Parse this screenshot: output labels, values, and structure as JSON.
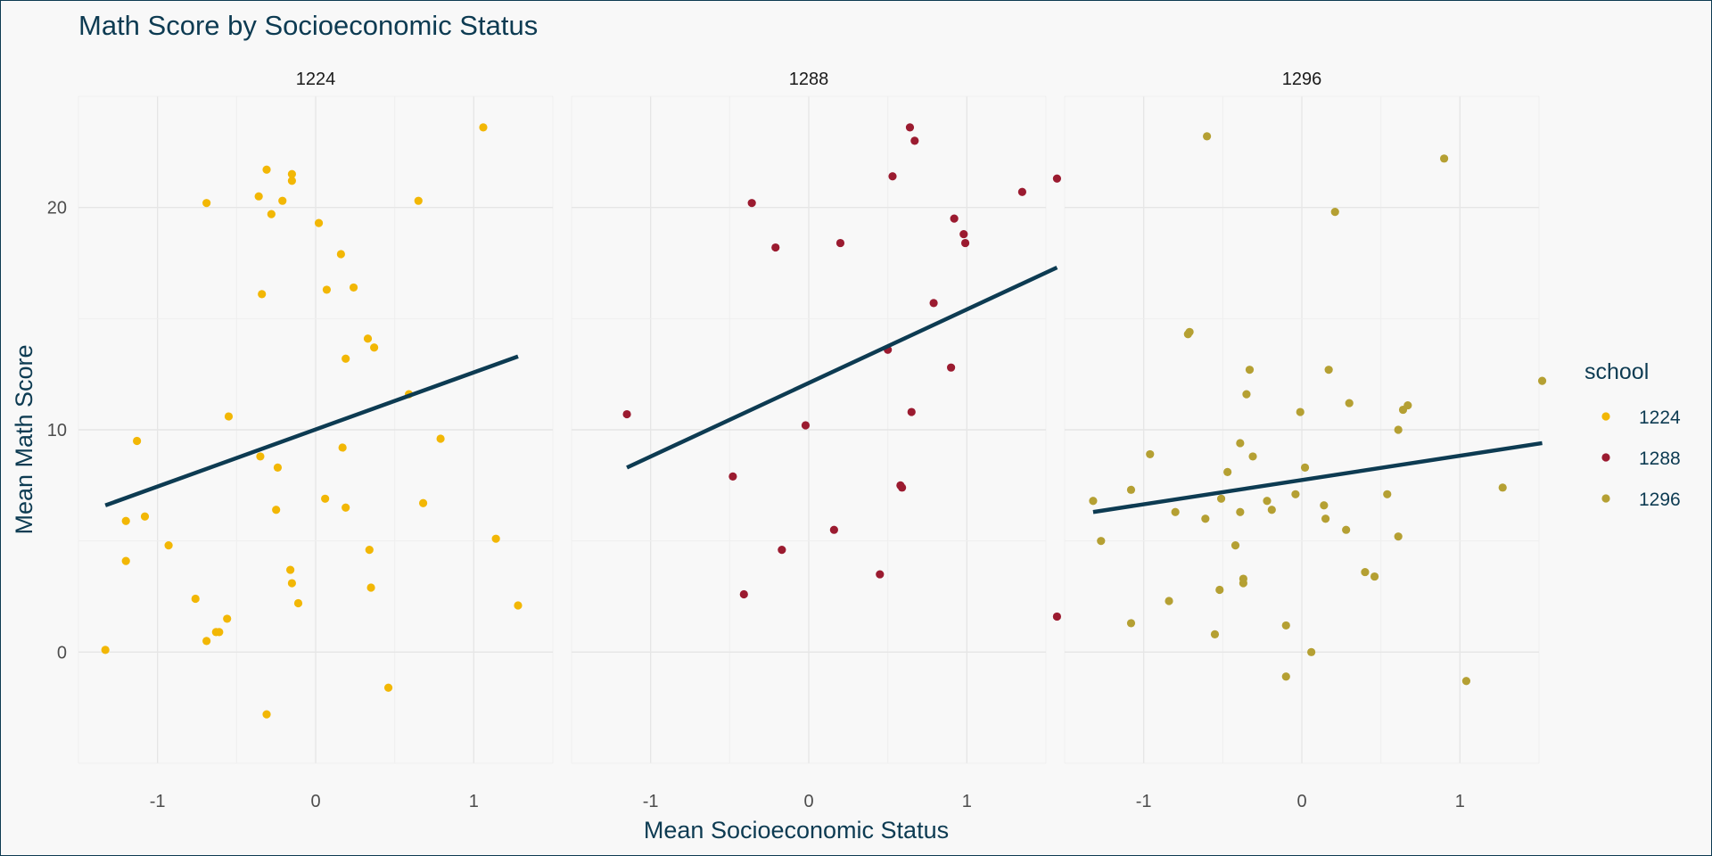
{
  "chart_data": {
    "type": "scatter",
    "title": "Math Score by Socioeconomic Status",
    "xlabel": "Mean Socioeconomic Status",
    "ylabel": "Mean Math Score",
    "xlim": [
      -1.5,
      1.5
    ],
    "ylim": [
      -5,
      25
    ],
    "x_ticks": [
      -1,
      0,
      1
    ],
    "y_ticks": [
      0,
      10,
      20
    ],
    "x_tick_labels": [
      "-1",
      "0",
      "1"
    ],
    "y_tick_labels": [
      "0",
      "10",
      "20"
    ],
    "grid": true,
    "legend": {
      "title": "school",
      "position": "right"
    },
    "facets": [
      {
        "label": "1224",
        "color": "#f2b705",
        "fit": {
          "x": [
            -1.33,
            1.28
          ],
          "y": [
            6.6,
            13.3
          ]
        },
        "points": [
          [
            -1.33,
            0.1
          ],
          [
            -1.2,
            5.9
          ],
          [
            -1.2,
            4.1
          ],
          [
            -1.13,
            9.5
          ],
          [
            -1.08,
            6.1
          ],
          [
            -0.93,
            4.8
          ],
          [
            -0.76,
            2.4
          ],
          [
            -0.69,
            20.2
          ],
          [
            -0.69,
            0.5
          ],
          [
            -0.63,
            0.9
          ],
          [
            -0.61,
            0.9
          ],
          [
            -0.56,
            1.5
          ],
          [
            -0.55,
            10.6
          ],
          [
            -0.36,
            20.5
          ],
          [
            -0.35,
            8.8
          ],
          [
            -0.34,
            16.1
          ],
          [
            -0.31,
            21.7
          ],
          [
            -0.31,
            -2.8
          ],
          [
            -0.28,
            19.7
          ],
          [
            -0.25,
            6.4
          ],
          [
            -0.24,
            8.3
          ],
          [
            -0.21,
            20.3
          ],
          [
            -0.16,
            3.7
          ],
          [
            -0.15,
            21.2
          ],
          [
            -0.15,
            21.5
          ],
          [
            -0.15,
            3.1
          ],
          [
            -0.11,
            2.2
          ],
          [
            0.02,
            19.3
          ],
          [
            0.06,
            6.9
          ],
          [
            0.07,
            16.3
          ],
          [
            0.16,
            17.9
          ],
          [
            0.17,
            9.2
          ],
          [
            0.19,
            13.2
          ],
          [
            0.19,
            6.5
          ],
          [
            0.24,
            16.4
          ],
          [
            0.33,
            14.1
          ],
          [
            0.34,
            4.6
          ],
          [
            0.35,
            2.9
          ],
          [
            0.37,
            13.7
          ],
          [
            0.46,
            -1.6
          ],
          [
            0.59,
            11.6
          ],
          [
            0.65,
            20.3
          ],
          [
            0.68,
            6.7
          ],
          [
            0.79,
            9.6
          ],
          [
            1.06,
            23.6
          ],
          [
            1.14,
            5.1
          ],
          [
            1.28,
            2.1
          ]
        ]
      },
      {
        "label": "1288",
        "color": "#9b1b30",
        "fit": {
          "x": [
            -1.15,
            1.57
          ],
          "y": [
            8.3,
            17.3
          ]
        },
        "points": [
          [
            -1.15,
            10.7
          ],
          [
            -0.48,
            7.9
          ],
          [
            -0.41,
            2.6
          ],
          [
            -0.36,
            20.2
          ],
          [
            -0.21,
            18.2
          ],
          [
            -0.17,
            4.6
          ],
          [
            -0.02,
            10.2
          ],
          [
            0.16,
            5.5
          ],
          [
            0.2,
            18.4
          ],
          [
            0.45,
            3.5
          ],
          [
            0.5,
            13.6
          ],
          [
            0.53,
            21.4
          ],
          [
            0.58,
            7.5
          ],
          [
            0.59,
            7.4
          ],
          [
            0.64,
            23.6
          ],
          [
            0.65,
            10.8
          ],
          [
            0.67,
            23.0
          ],
          [
            0.79,
            15.7
          ],
          [
            0.9,
            12.8
          ],
          [
            0.92,
            19.5
          ],
          [
            0.98,
            18.8
          ],
          [
            0.99,
            18.4
          ],
          [
            1.35,
            20.7
          ],
          [
            1.57,
            1.6
          ],
          [
            1.57,
            21.3
          ]
        ]
      },
      {
        "label": "1296",
        "color": "#b5a033",
        "fit": {
          "x": [
            -1.32,
            1.52
          ],
          "y": [
            6.3,
            9.4
          ]
        },
        "points": [
          [
            -1.32,
            6.8
          ],
          [
            -1.27,
            5.0
          ],
          [
            -1.08,
            1.3
          ],
          [
            -1.08,
            7.3
          ],
          [
            -0.96,
            8.9
          ],
          [
            -0.84,
            2.3
          ],
          [
            -0.8,
            6.3
          ],
          [
            -0.72,
            14.3
          ],
          [
            -0.71,
            14.4
          ],
          [
            -0.61,
            6.0
          ],
          [
            -0.6,
            23.2
          ],
          [
            -0.55,
            0.8
          ],
          [
            -0.52,
            2.8
          ],
          [
            -0.51,
            6.9
          ],
          [
            -0.47,
            8.1
          ],
          [
            -0.42,
            4.8
          ],
          [
            -0.39,
            9.4
          ],
          [
            -0.39,
            6.3
          ],
          [
            -0.37,
            3.1
          ],
          [
            -0.37,
            3.3
          ],
          [
            -0.35,
            11.6
          ],
          [
            -0.33,
            12.7
          ],
          [
            -0.31,
            8.8
          ],
          [
            -0.22,
            6.8
          ],
          [
            -0.19,
            6.4
          ],
          [
            -0.1,
            1.2
          ],
          [
            -0.1,
            -1.1
          ],
          [
            -0.04,
            7.1
          ],
          [
            -0.01,
            10.8
          ],
          [
            0.02,
            8.3
          ],
          [
            0.06,
            0.0
          ],
          [
            0.14,
            6.6
          ],
          [
            0.15,
            6.0
          ],
          [
            0.17,
            12.7
          ],
          [
            0.21,
            19.8
          ],
          [
            0.28,
            5.5
          ],
          [
            0.3,
            11.2
          ],
          [
            0.4,
            3.6
          ],
          [
            0.46,
            3.4
          ],
          [
            0.54,
            7.1
          ],
          [
            0.61,
            5.2
          ],
          [
            0.61,
            10.0
          ],
          [
            0.64,
            10.9
          ],
          [
            0.67,
            11.1
          ],
          [
            0.9,
            22.2
          ],
          [
            1.04,
            -1.3
          ],
          [
            1.27,
            7.4
          ],
          [
            1.52,
            12.2
          ]
        ]
      }
    ]
  }
}
